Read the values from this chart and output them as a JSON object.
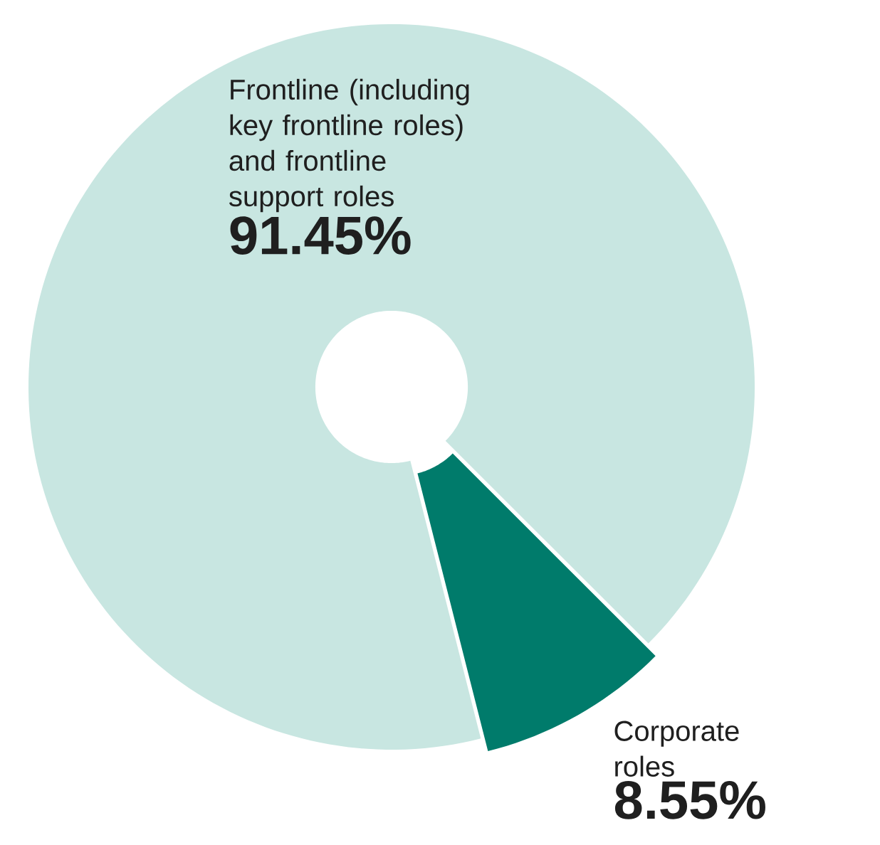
{
  "chart_data": {
    "type": "donut",
    "categories": [
      "Frontline (including key frontline roles) and frontline support roles",
      "Corporate roles"
    ],
    "values": [
      91.45,
      8.55
    ],
    "colors": [
      "#c8e6e1",
      "#007b6b"
    ],
    "value_labels": [
      "91.45%",
      "8.55%"
    ]
  }
}
